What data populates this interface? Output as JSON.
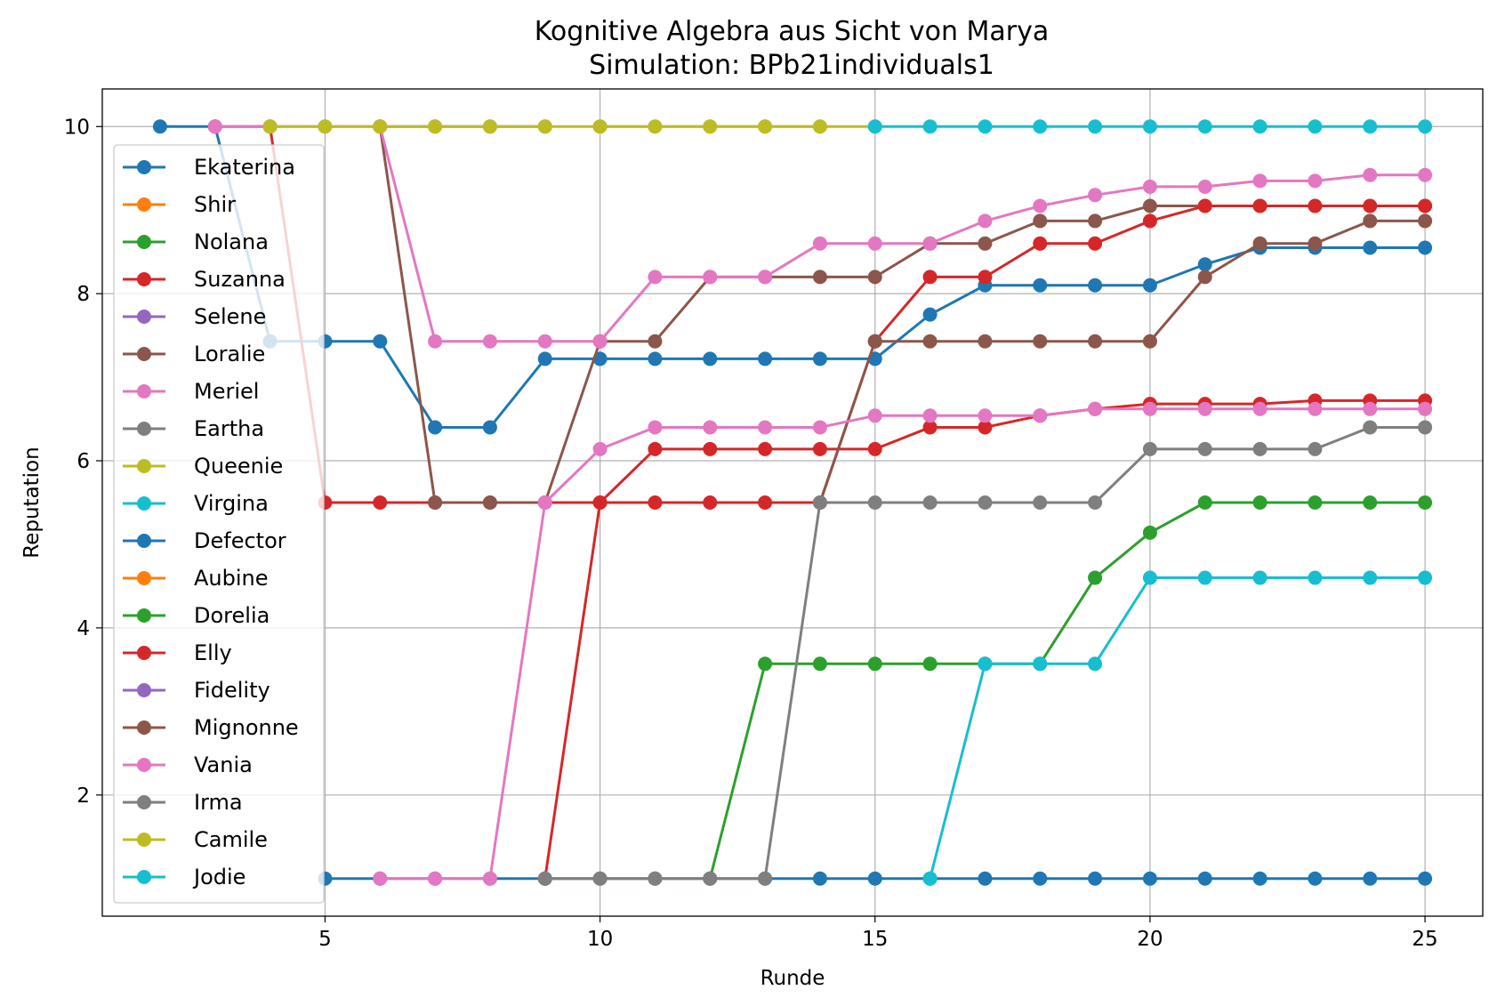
{
  "chart_data": {
    "type": "line",
    "title": "Kognitive Algebra aus Sicht von Marya",
    "subtitle": "Simulation: BPb21individuals1",
    "xlabel": "Runde",
    "ylabel": "Reputation",
    "xlim": [
      0.95,
      26.05
    ],
    "ylim": [
      0.55,
      10.45
    ],
    "xticks": [
      5,
      10,
      15,
      20,
      25
    ],
    "yticks": [
      2,
      4,
      6,
      8,
      10
    ],
    "grid": true,
    "legend_position": "left",
    "series": [
      {
        "name": "Ekaterina",
        "color": "#1f77b4",
        "x": [
          2,
          3,
          4,
          5,
          6,
          7,
          8,
          9,
          10,
          11,
          12,
          13,
          14,
          15,
          16,
          17,
          18,
          19,
          20,
          21,
          22,
          23,
          24,
          25
        ],
        "y": [
          10,
          10,
          7.43,
          7.43,
          7.43,
          6.4,
          6.4,
          7.22,
          7.22,
          7.22,
          7.22,
          7.22,
          7.22,
          7.22,
          7.75,
          8.1,
          8.1,
          8.1,
          8.1,
          8.35,
          8.55,
          8.55,
          8.55,
          8.55
        ]
      },
      {
        "name": "Shir",
        "color": "#ff7f0e",
        "x": [],
        "y": []
      },
      {
        "name": "Nolana",
        "color": "#2ca02c",
        "x": [],
        "y": []
      },
      {
        "name": "Suzanna",
        "color": "#d62728",
        "x": [
          3,
          4,
          5,
          6,
          7,
          8,
          9,
          10,
          11,
          12,
          13,
          14,
          15,
          16,
          17,
          18,
          19,
          20,
          21,
          22,
          23,
          24,
          25
        ],
        "y": [
          10,
          10,
          5.5,
          5.5,
          5.5,
          5.5,
          5.5,
          5.5,
          6.14,
          6.14,
          6.14,
          6.14,
          6.14,
          6.4,
          6.4,
          6.54,
          6.62,
          6.68,
          6.68,
          6.68,
          6.72,
          6.72,
          6.72
        ]
      },
      {
        "name": "Selene",
        "color": "#9467bd",
        "x": [
          6,
          7,
          8,
          9
        ],
        "y": [
          10,
          10,
          10,
          10
        ]
      },
      {
        "name": "Loralie",
        "color": "#8c564b",
        "x": [
          6,
          7,
          8,
          9,
          10,
          11,
          12,
          13,
          14,
          15,
          16,
          17,
          18,
          19,
          20,
          21,
          22,
          23,
          24,
          25
        ],
        "y": [
          10,
          5.5,
          5.5,
          5.5,
          7.43,
          7.43,
          8.2,
          8.2,
          8.2,
          8.2,
          8.6,
          8.6,
          8.87,
          8.87,
          9.05,
          9.05,
          9.05,
          9.05,
          9.05,
          9.05
        ]
      },
      {
        "name": "Meriel",
        "color": "#e377c2",
        "x": [
          3,
          4,
          5,
          6,
          7,
          8,
          9,
          10,
          11,
          12,
          13,
          14,
          15,
          16,
          17,
          18,
          19,
          20,
          21,
          22,
          23,
          24,
          25
        ],
        "y": [
          10,
          10,
          10,
          10,
          7.43,
          7.43,
          7.43,
          7.43,
          8.2,
          8.2,
          8.2,
          8.6,
          8.6,
          8.6,
          8.87,
          9.05,
          9.18,
          9.28,
          9.28,
          9.35,
          9.35,
          9.42,
          9.42
        ]
      },
      {
        "name": "Eartha",
        "color": "#7f7f7f",
        "x": [],
        "y": []
      },
      {
        "name": "Queenie",
        "color": "#bcbd22",
        "x": [
          10,
          11,
          12,
          13,
          14,
          15
        ],
        "y": [
          10,
          10,
          10,
          10,
          10,
          10
        ]
      },
      {
        "name": "Virgina",
        "color": "#17becf",
        "x": [
          15,
          16,
          17,
          18,
          19,
          20,
          21,
          22,
          23,
          24,
          25
        ],
        "y": [
          10,
          10,
          10,
          10,
          10,
          10,
          10,
          10,
          10,
          10,
          10
        ]
      },
      {
        "name": "Defector",
        "color": "#1f77b4",
        "x": [
          5,
          6,
          7,
          8,
          9,
          10,
          11,
          12,
          13,
          14,
          15,
          16,
          17,
          18,
          19,
          20,
          21,
          22,
          23,
          24,
          25
        ],
        "y": [
          1,
          1,
          1,
          1,
          1,
          1,
          1,
          1,
          1,
          1,
          1,
          1,
          1,
          1,
          1,
          1,
          1,
          1,
          1,
          1,
          1
        ]
      },
      {
        "name": "Aubine",
        "color": "#ff7f0e",
        "x": [],
        "y": []
      },
      {
        "name": "Dorelia",
        "color": "#2ca02c",
        "x": [
          12,
          13,
          14,
          15,
          16,
          17,
          18,
          19,
          20,
          21,
          22,
          23,
          24,
          25
        ],
        "y": [
          1,
          3.57,
          3.57,
          3.57,
          3.57,
          3.57,
          3.57,
          4.6,
          5.14,
          5.5,
          5.5,
          5.5,
          5.5,
          5.5
        ]
      },
      {
        "name": "Elly",
        "color": "#d62728",
        "x": [
          9,
          10,
          11,
          12,
          13,
          14,
          15,
          16,
          17,
          18,
          19,
          20,
          21,
          22,
          23,
          24,
          25
        ],
        "y": [
          1,
          5.5,
          5.5,
          5.5,
          5.5,
          5.5,
          7.43,
          8.2,
          8.2,
          8.6,
          8.6,
          8.87,
          9.05,
          9.05,
          9.05,
          9.05,
          9.05
        ]
      },
      {
        "name": "Fidelity",
        "color": "#9467bd",
        "x": [],
        "y": []
      },
      {
        "name": "Mignonne",
        "color": "#8c564b",
        "x": [
          14,
          15,
          16,
          17,
          18,
          19,
          20,
          21,
          22,
          23,
          24,
          25
        ],
        "y": [
          5.5,
          7.43,
          7.43,
          7.43,
          7.43,
          7.43,
          7.43,
          8.2,
          8.6,
          8.6,
          8.87,
          8.87
        ]
      },
      {
        "name": "Vania",
        "color": "#e377c2",
        "x": [
          6,
          7,
          8,
          9,
          10,
          11,
          12,
          13,
          14,
          15,
          16,
          17,
          18,
          19,
          20,
          21,
          22,
          23,
          24,
          25
        ],
        "y": [
          1,
          1,
          1,
          5.5,
          6.14,
          6.4,
          6.4,
          6.4,
          6.4,
          6.54,
          6.54,
          6.54,
          6.54,
          6.62,
          6.62,
          6.62,
          6.62,
          6.62,
          6.62,
          6.62
        ]
      },
      {
        "name": "Irma",
        "color": "#7f7f7f",
        "x": [
          9,
          10,
          11,
          12,
          13,
          14,
          15,
          16,
          17,
          18,
          19,
          20,
          21,
          22,
          23,
          24,
          25
        ],
        "y": [
          1,
          1,
          1,
          1,
          1,
          5.5,
          5.5,
          5.5,
          5.5,
          5.5,
          5.5,
          6.14,
          6.14,
          6.14,
          6.14,
          6.4,
          6.4
        ]
      },
      {
        "name": "Camile",
        "color": "#bcbd22",
        "x": [
          4,
          5,
          6,
          7,
          8,
          9,
          10,
          11,
          12,
          13,
          14
        ],
        "y": [
          10,
          10,
          10,
          10,
          10,
          10,
          10,
          10,
          10,
          10,
          10
        ]
      },
      {
        "name": "Jodie",
        "color": "#17becf",
        "x": [
          16,
          17,
          18,
          19,
          20,
          21,
          22,
          23,
          24,
          25
        ],
        "y": [
          1,
          3.57,
          3.57,
          3.57,
          4.6,
          4.6,
          4.6,
          4.6,
          4.6,
          4.6
        ]
      }
    ]
  }
}
